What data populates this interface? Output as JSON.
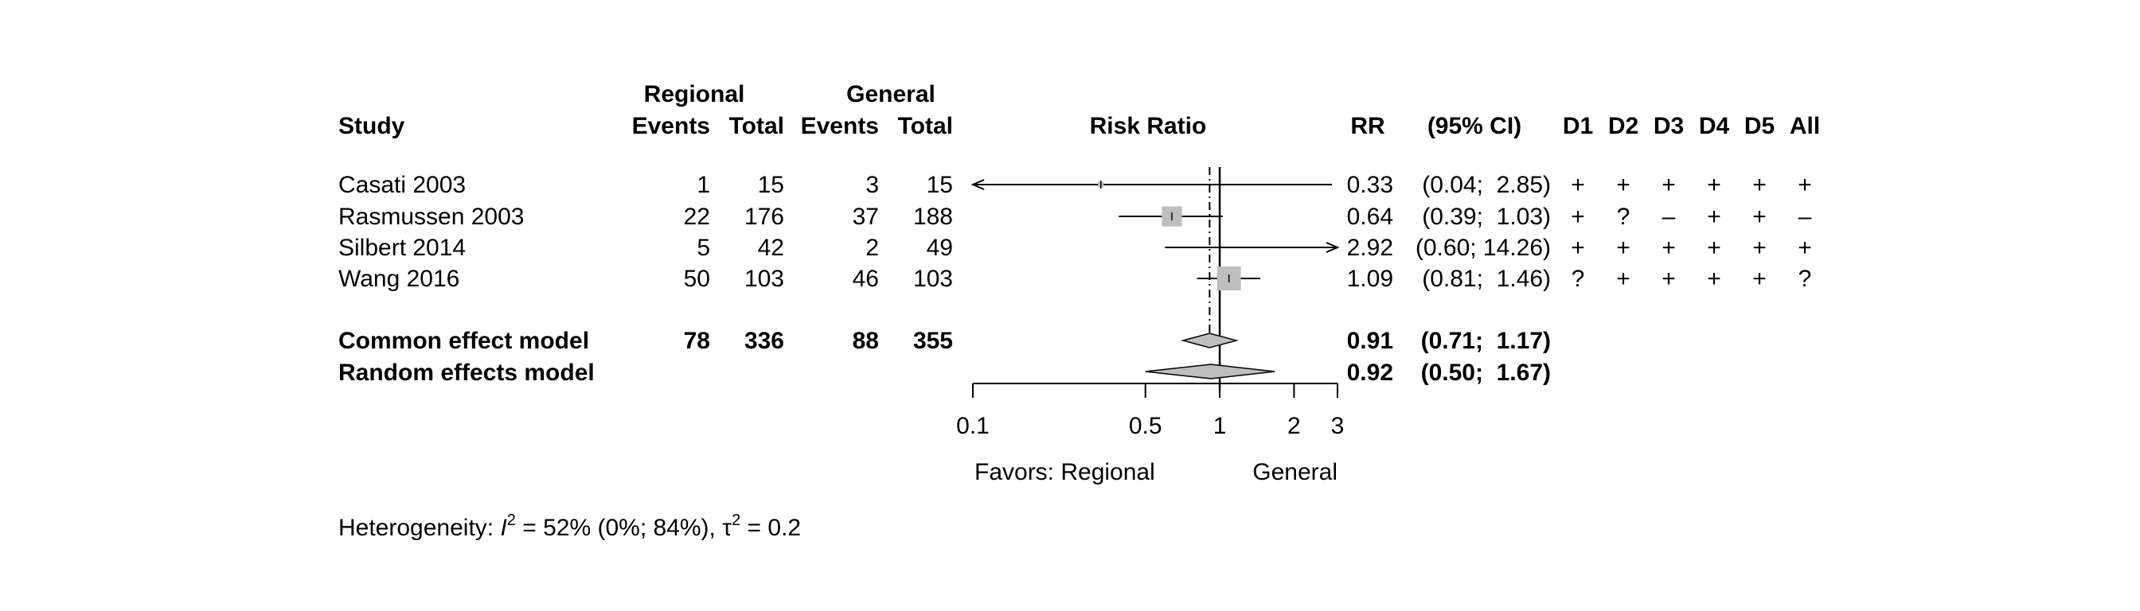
{
  "chart_data": {
    "type": "forest",
    "measure": "Risk Ratio",
    "scale": "log",
    "xlim": [
      0.1,
      3
    ],
    "x_ticks": [
      "0.1",
      "0.5",
      "1",
      "2",
      "3"
    ],
    "label_left": "Favors: Regional",
    "label_right": "General",
    "headers": {
      "study": "Study",
      "group1": "Regional",
      "group2": "General",
      "events": "Events",
      "total": "Total",
      "plot": "Risk Ratio",
      "rr": "RR",
      "ci": "(95% CI)",
      "domains": [
        "D1",
        "D2",
        "D3",
        "D4",
        "D5",
        "All"
      ]
    },
    "studies": [
      {
        "study": "Casati 2003",
        "e1": "1",
        "n1": "15",
        "e2": "3",
        "n2": "15",
        "rr": 0.33,
        "lo": 0.04,
        "hi": 2.85,
        "rr_text": "0.33",
        "ci_text": "(0.04;  2.85)",
        "weight": 0.05,
        "rob": [
          "+",
          "+",
          "+",
          "+",
          "+",
          "+"
        ]
      },
      {
        "study": "Rasmussen 2003",
        "e1": "22",
        "n1": "176",
        "e2": "37",
        "n2": "188",
        "rr": 0.64,
        "lo": 0.39,
        "hi": 1.03,
        "rr_text": "0.64",
        "ci_text": "(0.39;  1.03)",
        "weight": 0.8,
        "rob": [
          "+",
          "?",
          "–",
          "+",
          "+",
          "–"
        ]
      },
      {
        "study": "Silbert 2014",
        "e1": "5",
        "n1": "42",
        "e2": "2",
        "n2": "49",
        "rr": 2.92,
        "lo": 0.6,
        "hi": 14.26,
        "rr_text": "2.92",
        "ci_text": "(0.60; 14.26)",
        "weight": 0.0,
        "rob": [
          "+",
          "+",
          "+",
          "+",
          "+",
          "+"
        ]
      },
      {
        "study": "Wang 2016",
        "e1": "50",
        "n1": "103",
        "e2": "46",
        "n2": "103",
        "rr": 1.09,
        "lo": 0.81,
        "hi": 1.46,
        "rr_text": "1.09",
        "ci_text": "(0.81;  1.46)",
        "weight": 1.0,
        "rob": [
          "?",
          "+",
          "+",
          "+",
          "+",
          "?"
        ]
      }
    ],
    "pooled": [
      {
        "label": "Common effect model",
        "e1": "78",
        "n1": "336",
        "e2": "88",
        "n2": "355",
        "rr": 0.91,
        "lo": 0.71,
        "hi": 1.17,
        "rr_text": "0.91",
        "ci_text": "(0.71;  1.17)"
      },
      {
        "label": "Random effects model",
        "e1": "",
        "n1": "",
        "e2": "",
        "n2": "",
        "rr": 0.92,
        "lo": 0.5,
        "hi": 1.67,
        "rr_text": "0.92",
        "ci_text": "(0.50;  1.67)"
      }
    ],
    "heterogeneity": {
      "prefix": "Heterogeneity: ",
      "i2_symbol": "I",
      "i2_sup": "2",
      "i2_value": " = 52% (0%; 84%), ",
      "tau_symbol": "τ",
      "tau_sup": "2",
      "tau_value": " = 0.2"
    },
    "colors": {
      "box": "#bebebe",
      "diamond": "#bebebe",
      "line": "#000000"
    }
  }
}
